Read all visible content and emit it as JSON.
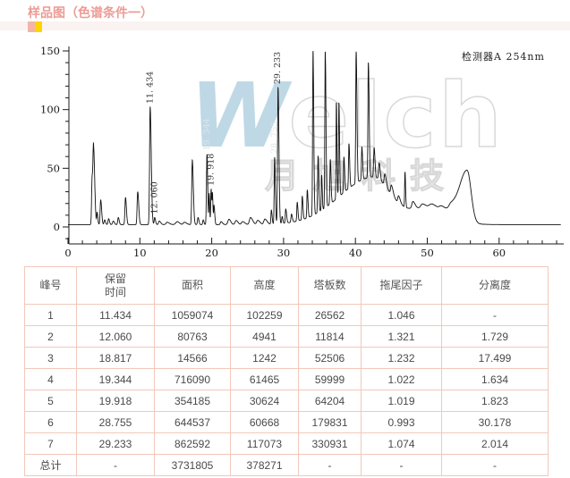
{
  "page": {
    "title": "样品图（色谱条件一）"
  },
  "watermark": {
    "brand": "Welch",
    "brand_cn": "月旭科技"
  },
  "chart_data": {
    "type": "line",
    "title": "",
    "xlabel": "",
    "ylabel": "",
    "detector_label": "检测器A 254nm",
    "xlim": [
      0,
      69
    ],
    "ylim": [
      -15,
      155
    ],
    "x_major_ticks": [
      0,
      10,
      20,
      30,
      40,
      50,
      60
    ],
    "x_minor_step": 2,
    "y_major_ticks": [
      0,
      50,
      100,
      150
    ],
    "y_minor_step": 10,
    "grid": false,
    "legend": "none",
    "curve_color": "#111111",
    "labeled_peaks": [
      {
        "label": "11. 434",
        "t": 11.434,
        "color": "#333333"
      },
      {
        "label": "12. 060",
        "t": 12.06,
        "color": "#333333"
      },
      {
        "label": "19. 344",
        "t": 19.34,
        "color": "#dde4e8"
      },
      {
        "label": "19. 918",
        "t": 19.92,
        "color": "#333333"
      },
      {
        "label": "28. 755",
        "t": 28.755,
        "color": "#dde4e8"
      },
      {
        "label": "29. 233",
        "t": 29.233,
        "color": "#333333"
      }
    ],
    "curve_model": {
      "base": 2,
      "peaks": [
        [
          3.35,
          38,
          0.07,
          0.09
        ],
        [
          3.55,
          66,
          0.08,
          0.16
        ],
        [
          4.05,
          10,
          0.06,
          0.1
        ],
        [
          4.55,
          21,
          0.08,
          0.13
        ],
        [
          5.1,
          4,
          0.08,
          0.12
        ],
        [
          5.65,
          5,
          0.08,
          0.12
        ],
        [
          6.3,
          3,
          0.1,
          0.15
        ],
        [
          7.0,
          6,
          0.08,
          0.12
        ],
        [
          8.0,
          23,
          0.08,
          0.13
        ],
        [
          9.7,
          28,
          0.08,
          0.14
        ],
        [
          11.434,
          100,
          0.08,
          0.15
        ],
        [
          12.06,
          6,
          0.07,
          0.12
        ],
        [
          12.7,
          3,
          0.1,
          0.2
        ],
        [
          13.8,
          2,
          0.15,
          0.3
        ],
        [
          15.2,
          2.5,
          0.2,
          0.3
        ],
        [
          16.2,
          2,
          0.15,
          0.3
        ],
        [
          17.3,
          55,
          0.08,
          0.14
        ],
        [
          18.1,
          6,
          0.08,
          0.12
        ],
        [
          18.82,
          4,
          0.07,
          0.1
        ],
        [
          19.34,
          60,
          0.07,
          0.1
        ],
        [
          19.65,
          26,
          0.05,
          0.07
        ],
        [
          19.92,
          30,
          0.06,
          0.08
        ],
        [
          20.1,
          25,
          0.05,
          0.08
        ],
        [
          20.32,
          16,
          0.05,
          0.1
        ],
        [
          21.3,
          2.5,
          0.1,
          0.2
        ],
        [
          22.4,
          4.5,
          0.15,
          0.25
        ],
        [
          23.4,
          3.5,
          0.15,
          0.25
        ],
        [
          24.3,
          2.5,
          0.15,
          0.3
        ],
        [
          25.4,
          6,
          0.15,
          0.3
        ],
        [
          26.4,
          3.5,
          0.15,
          0.3
        ],
        [
          27.4,
          4.5,
          0.15,
          0.3
        ],
        [
          28.3,
          12,
          0.06,
          0.1
        ],
        [
          28.755,
          57,
          0.06,
          0.1
        ],
        [
          29.233,
          116,
          0.07,
          0.12
        ],
        [
          29.8,
          6,
          0.06,
          0.1
        ],
        [
          30.3,
          12,
          0.06,
          0.12
        ],
        [
          31.1,
          7,
          0.07,
          0.12
        ],
        [
          31.9,
          16,
          0.06,
          0.1
        ],
        [
          32.6,
          20,
          0.06,
          0.1
        ],
        [
          33.3,
          24,
          0.06,
          0.1
        ],
        [
          34.1,
          140,
          0.06,
          0.1
        ],
        [
          34.8,
          48,
          0.06,
          0.1
        ],
        [
          35.3,
          30,
          0.05,
          0.08
        ],
        [
          35.8,
          133,
          0.06,
          0.1
        ],
        [
          36.5,
          38,
          0.06,
          0.1
        ],
        [
          37.35,
          82,
          0.05,
          0.08
        ],
        [
          37.7,
          80,
          0.05,
          0.09
        ],
        [
          38.4,
          30,
          0.06,
          0.1
        ],
        [
          39.1,
          38,
          0.06,
          0.1
        ],
        [
          40.1,
          112,
          0.06,
          0.11
        ],
        [
          40.9,
          28,
          0.06,
          0.1
        ],
        [
          41.8,
          98,
          0.06,
          0.11
        ],
        [
          42.6,
          25,
          0.07,
          0.12
        ],
        [
          43.3,
          14,
          0.08,
          0.15
        ],
        [
          44.1,
          10,
          0.1,
          0.2
        ],
        [
          45.0,
          8,
          0.1,
          0.25
        ],
        [
          46.0,
          6,
          0.1,
          0.25
        ],
        [
          46.9,
          30,
          0.05,
          0.08
        ],
        [
          48.0,
          6,
          0.15,
          0.3
        ],
        [
          49.3,
          3,
          0.2,
          0.4
        ],
        [
          50.6,
          2.5,
          0.3,
          0.5
        ],
        [
          52.0,
          3,
          0.3,
          0.6
        ],
        [
          53.3,
          5,
          0.3,
          0.6
        ]
      ],
      "humps": [
        [
          42.4,
          40,
          4.6,
          2.4
        ],
        [
          50.5,
          15,
          3.2,
          2.6
        ],
        [
          55.55,
          44,
          1.1,
          0.55
        ]
      ]
    }
  },
  "table": {
    "headers": [
      "峰号",
      "保留\n时间",
      "面积",
      "高度",
      "塔板数",
      "拖尾因子",
      "分离度"
    ],
    "rows": [
      [
        "1",
        "11.434",
        "1059074",
        "102259",
        "26562",
        "1.046",
        "-"
      ],
      [
        "2",
        "12.060",
        "80763",
        "4941",
        "11814",
        "1.321",
        "1.729"
      ],
      [
        "3",
        "18.817",
        "14566",
        "1242",
        "52506",
        "1.232",
        "17.499"
      ],
      [
        "4",
        "19.344",
        "716090",
        "61465",
        "59999",
        "1.022",
        "1.634"
      ],
      [
        "5",
        "19.918",
        "354185",
        "30624",
        "64204",
        "1.019",
        "1.823"
      ],
      [
        "6",
        "28.755",
        "644537",
        "60668",
        "179831",
        "0.993",
        "30.178"
      ],
      [
        "7",
        "29.233",
        "862592",
        "117073",
        "330931",
        "1.074",
        "2.014"
      ],
      [
        "总计",
        "-",
        "3731805",
        "378271",
        "-",
        "-",
        "-"
      ]
    ]
  }
}
